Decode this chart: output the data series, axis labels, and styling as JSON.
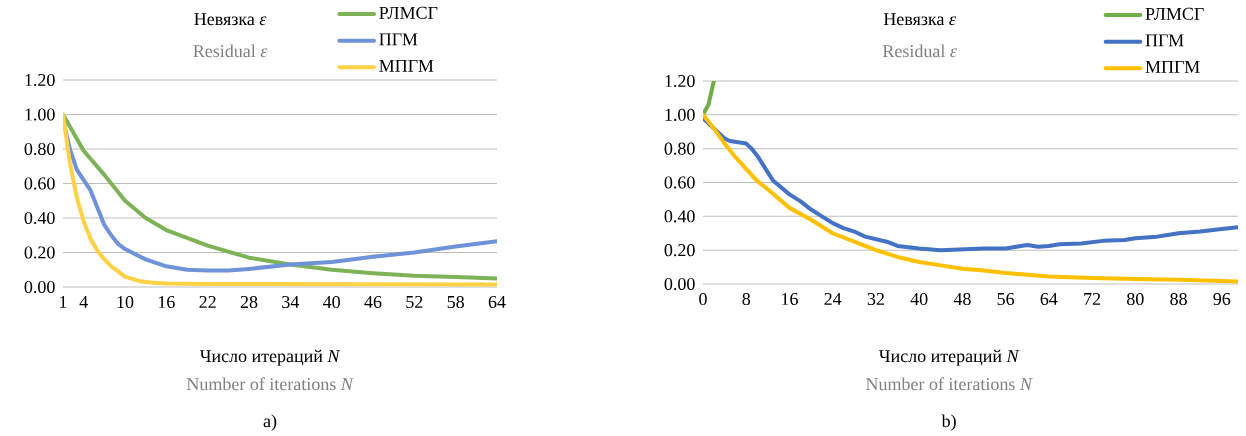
{
  "chart_data": [
    {
      "type": "line",
      "title": "Невязка *ε*",
      "subtitle": "Residual *ε*",
      "xlabel": "Число итераций *N*",
      "annotations": [
        "Number of iterations *N*",
        "a)"
      ],
      "xlim": [
        1,
        64
      ],
      "xticks": [
        1,
        4,
        10,
        16,
        22,
        28,
        34,
        40,
        46,
        52,
        58,
        64
      ],
      "ylim": [
        0,
        1.2
      ],
      "yticks": [
        {
          "value": 0,
          "label": "0.00"
        },
        {
          "value": 0.2,
          "label": "0.20"
        },
        {
          "value": 0.4,
          "label": "0.40"
        },
        {
          "value": 0.6,
          "label": "0.60"
        },
        {
          "value": 0.8,
          "label": "0.80"
        },
        {
          "value": 1.0,
          "label": "1.00"
        },
        {
          "value": 1.2,
          "label": "1.20"
        }
      ],
      "grid": "y",
      "legend": "top right",
      "marker": "none",
      "line_style": "solid",
      "series": [
        {
          "name": "РЛМСГ",
          "color": "#7db356",
          "x": [
            1,
            4,
            7,
            10,
            13,
            16,
            22,
            28,
            34,
            40,
            46,
            52,
            58,
            64
          ],
          "values": [
            1.0,
            0.79,
            0.65,
            0.5,
            0.4,
            0.33,
            0.24,
            0.17,
            0.13,
            0.1,
            0.08,
            0.065,
            0.058,
            0.05
          ]
        },
        {
          "name": "ПГМ",
          "color": "#6f93d9",
          "x": [
            1,
            2,
            3,
            4,
            5,
            6,
            7,
            8,
            9,
            10,
            13,
            16,
            19,
            22,
            25,
            28,
            34,
            40,
            46,
            52,
            58,
            64
          ],
          "values": [
            0.97,
            0.8,
            0.68,
            0.62,
            0.56,
            0.46,
            0.36,
            0.3,
            0.25,
            0.22,
            0.16,
            0.12,
            0.1,
            0.095,
            0.095,
            0.105,
            0.13,
            0.145,
            0.175,
            0.2,
            0.235,
            0.265
          ]
        },
        {
          "name": "МПГМ",
          "color": "#ffd145",
          "x": [
            1,
            2,
            3,
            4,
            5,
            6,
            7,
            8,
            10,
            12,
            14,
            16,
            22,
            64
          ],
          "values": [
            1.0,
            0.72,
            0.52,
            0.38,
            0.28,
            0.21,
            0.16,
            0.12,
            0.06,
            0.035,
            0.025,
            0.02,
            0.018,
            0.015
          ]
        }
      ]
    },
    {
      "type": "line",
      "title": "Невязка *ε*",
      "subtitle": "Residual *ε*",
      "xlabel": "Число итераций *N*",
      "annotations": [
        "Number of iterations *N*",
        "b)"
      ],
      "xlim": [
        0,
        99
      ],
      "xticks": [
        0,
        8,
        16,
        24,
        32,
        40,
        48,
        56,
        64,
        72,
        80,
        88,
        96
      ],
      "ylim": [
        0,
        1.2
      ],
      "yticks": [
        {
          "value": 0,
          "label": "0.00"
        },
        {
          "value": 0.2,
          "label": "0.20"
        },
        {
          "value": 0.4,
          "label": "0.40"
        },
        {
          "value": 0.6,
          "label": "0.60"
        },
        {
          "value": 0.8,
          "label": "0.80"
        },
        {
          "value": 1.0,
          "label": "1.00"
        },
        {
          "value": 1.2,
          "label": "1.20"
        }
      ],
      "grid": "y",
      "legend": "top right",
      "marker": "none",
      "line_style": "solid",
      "series": [
        {
          "name": "РЛМСГ",
          "color": "#70ad47",
          "x": [
            0,
            1,
            2
          ],
          "values": [
            1.0,
            1.06,
            1.2
          ]
        },
        {
          "name": "ПГМ",
          "color": "#4472c4",
          "x": [
            0,
            2,
            4,
            5,
            8,
            9,
            10,
            12,
            13,
            16,
            18,
            20,
            22,
            24,
            26,
            28,
            30,
            34,
            36,
            40,
            44,
            48,
            52,
            56,
            58,
            60,
            62,
            64,
            66,
            70,
            74,
            78,
            80,
            84,
            86,
            88,
            92,
            96,
            99
          ],
          "values": [
            0.98,
            0.92,
            0.86,
            0.845,
            0.83,
            0.8,
            0.76,
            0.66,
            0.61,
            0.53,
            0.49,
            0.44,
            0.4,
            0.36,
            0.33,
            0.31,
            0.28,
            0.25,
            0.225,
            0.21,
            0.2,
            0.205,
            0.21,
            0.21,
            0.22,
            0.23,
            0.22,
            0.225,
            0.235,
            0.24,
            0.255,
            0.26,
            0.27,
            0.28,
            0.29,
            0.3,
            0.31,
            0.325,
            0.335
          ]
        },
        {
          "name": "МПГМ",
          "color": "#ffc000",
          "x": [
            0,
            2,
            4,
            6,
            8,
            10,
            12,
            16,
            20,
            24,
            28,
            32,
            36,
            40,
            44,
            48,
            52,
            56,
            60,
            64,
            72,
            80,
            88,
            96,
            99
          ],
          "values": [
            1.0,
            0.92,
            0.83,
            0.75,
            0.68,
            0.61,
            0.56,
            0.45,
            0.38,
            0.3,
            0.25,
            0.2,
            0.16,
            0.13,
            0.11,
            0.09,
            0.08,
            0.065,
            0.055,
            0.045,
            0.035,
            0.03,
            0.025,
            0.018,
            0.015
          ]
        }
      ]
    }
  ]
}
